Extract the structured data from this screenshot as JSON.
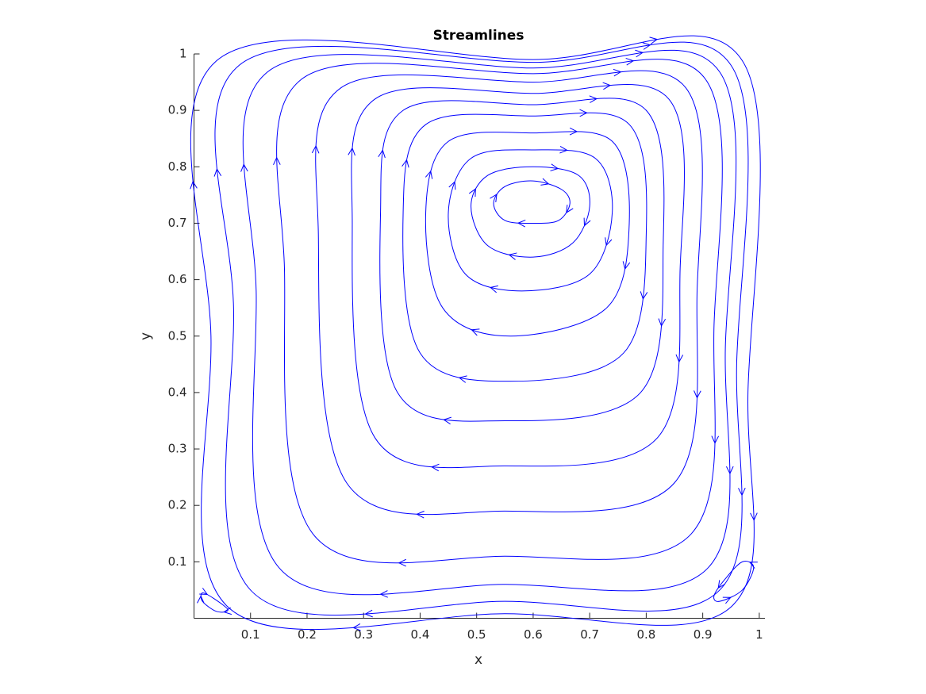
{
  "chart_data": {
    "type": "streamline",
    "title": "Streamlines",
    "x_label": "x",
    "y_label": "y",
    "color": "#0000ff",
    "xlim": [
      0,
      1.01
    ],
    "ylim": [
      0,
      1
    ],
    "xticks": [
      0.1,
      0.2,
      0.3,
      0.4,
      0.5,
      0.6,
      0.7,
      0.8,
      0.9,
      1
    ],
    "yticks": [
      0.1,
      0.2,
      0.3,
      0.4,
      0.5,
      0.6,
      0.7,
      0.8,
      0.9,
      1
    ],
    "series": [
      {
        "x": [
          0.6,
          0.65,
          0.665,
          0.645,
          0.6,
          0.55,
          0.53,
          0.55
        ],
        "y": [
          0.775,
          0.76,
          0.735,
          0.705,
          0.7,
          0.705,
          0.735,
          0.765
        ]
      },
      {
        "x": [
          0.6,
          0.68,
          0.7,
          0.67,
          0.6,
          0.52,
          0.49,
          0.52
        ],
        "y": [
          0.8,
          0.785,
          0.73,
          0.665,
          0.64,
          0.66,
          0.73,
          0.785
        ]
      },
      {
        "x": [
          0.6,
          0.71,
          0.74,
          0.7,
          0.58,
          0.48,
          0.45,
          0.49
        ],
        "y": [
          0.83,
          0.815,
          0.72,
          0.61,
          0.58,
          0.61,
          0.72,
          0.815
        ]
      },
      {
        "x": [
          0.6,
          0.74,
          0.77,
          0.73,
          0.56,
          0.44,
          0.41,
          0.45
        ],
        "y": [
          0.86,
          0.845,
          0.7,
          0.55,
          0.5,
          0.55,
          0.72,
          0.845
        ]
      },
      {
        "x": [
          0.6,
          0.77,
          0.8,
          0.76,
          0.56,
          0.4,
          0.37,
          0.41
        ],
        "y": [
          0.89,
          0.875,
          0.68,
          0.47,
          0.42,
          0.47,
          0.72,
          0.875
        ]
      },
      {
        "x": [
          0.6,
          0.8,
          0.83,
          0.79,
          0.55,
          0.36,
          0.33,
          0.37
        ],
        "y": [
          0.91,
          0.9,
          0.66,
          0.4,
          0.35,
          0.4,
          0.72,
          0.9
        ]
      },
      {
        "x": [
          0.6,
          0.84,
          0.86,
          0.82,
          0.55,
          0.32,
          0.28,
          0.32
        ],
        "y": [
          0.93,
          0.92,
          0.62,
          0.32,
          0.27,
          0.32,
          0.7,
          0.92
        ]
      },
      {
        "x": [
          0.6,
          0.87,
          0.89,
          0.85,
          0.55,
          0.27,
          0.22,
          0.26
        ],
        "y": [
          0.95,
          0.94,
          0.58,
          0.24,
          0.19,
          0.24,
          0.68,
          0.94
        ]
      },
      {
        "x": [
          0.6,
          0.905,
          0.92,
          0.88,
          0.55,
          0.21,
          0.16,
          0.19
        ],
        "y": [
          0.965,
          0.955,
          0.52,
          0.15,
          0.11,
          0.15,
          0.62,
          0.955
        ]
      },
      {
        "x": [
          0.6,
          0.93,
          0.94,
          0.91,
          0.55,
          0.15,
          0.11,
          0.13
        ],
        "y": [
          0.975,
          0.968,
          0.48,
          0.09,
          0.06,
          0.09,
          0.58,
          0.968
        ]
      },
      {
        "x": [
          0.6,
          0.95,
          0.96,
          0.93,
          0.55,
          0.1,
          0.07,
          0.08
        ],
        "y": [
          0.985,
          0.98,
          0.45,
          0.05,
          0.03,
          0.05,
          0.55,
          0.98
        ]
      },
      {
        "x": [
          0.6,
          0.97,
          0.98,
          0.95,
          0.55,
          0.06,
          0.03,
          0.04
        ],
        "y": [
          0.99,
          0.988,
          0.4,
          0.02,
          0.008,
          0.02,
          0.5,
          0.988
        ]
      },
      {
        "x": [
          0.015,
          0.035,
          0.06,
          0.04,
          0.015
        ],
        "y": [
          0.045,
          0.035,
          0.015,
          0.012,
          0.03
        ]
      },
      {
        "x": [
          0.93,
          0.97,
          0.99,
          0.97,
          0.94,
          0.92
        ],
        "y": [
          0.03,
          0.05,
          0.09,
          0.1,
          0.07,
          0.04
        ]
      }
    ]
  }
}
